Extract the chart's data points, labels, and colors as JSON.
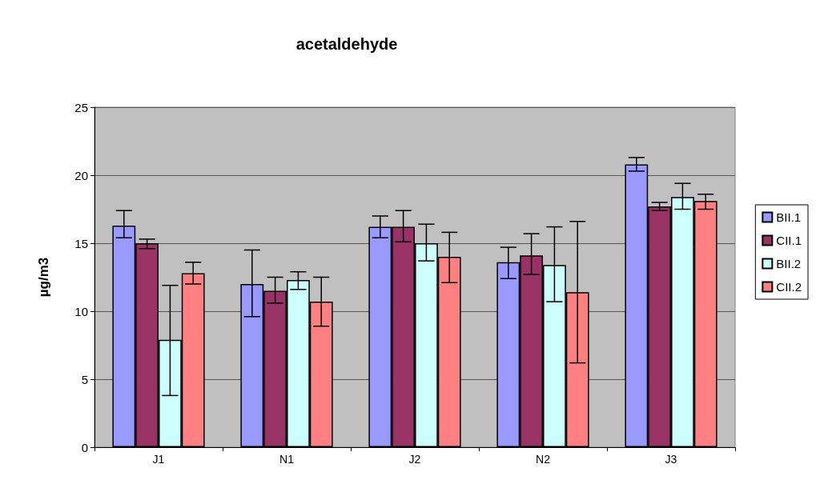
{
  "chart_data": {
    "type": "bar",
    "title": "acetaldehyde",
    "ylabel": "µg/m3",
    "categories": [
      "J1",
      "N1",
      "J2",
      "N2",
      "J3"
    ],
    "series": [
      {
        "name": "BII.1",
        "color": "#9999ff",
        "values": [
          16.3,
          12.0,
          16.2,
          13.6,
          20.8
        ],
        "errors": [
          [
            15.4,
            17.4
          ],
          [
            9.6,
            14.5
          ],
          [
            15.4,
            17.0
          ],
          [
            12.4,
            14.7
          ],
          [
            20.3,
            21.3
          ]
        ]
      },
      {
        "name": "CII.1",
        "color": "#993366",
        "values": [
          15.0,
          11.5,
          16.2,
          14.1,
          17.7
        ],
        "errors": [
          [
            14.6,
            15.3
          ],
          [
            10.6,
            12.5
          ],
          [
            15.1,
            17.4
          ],
          [
            12.7,
            15.7
          ],
          [
            17.4,
            18.0
          ]
        ]
      },
      {
        "name": "BII.2",
        "color": "#ccffff",
        "values": [
          7.9,
          12.3,
          15.0,
          13.4,
          18.4
        ],
        "errors": [
          [
            3.8,
            11.9
          ],
          [
            11.6,
            12.9
          ],
          [
            13.7,
            16.4
          ],
          [
            10.7,
            16.2
          ],
          [
            17.5,
            19.4
          ]
        ]
      },
      {
        "name": "CII.2",
        "color": "#ff8080",
        "values": [
          12.8,
          10.7,
          14.0,
          11.4,
          18.1
        ],
        "errors": [
          [
            12.0,
            13.6
          ],
          [
            8.9,
            12.5
          ],
          [
            12.1,
            15.8
          ],
          [
            6.2,
            16.6
          ],
          [
            17.5,
            18.6
          ]
        ]
      }
    ],
    "ylim": [
      0,
      25
    ],
    "yticks": [
      0,
      5,
      10,
      15,
      20,
      25
    ],
    "grid": "y",
    "legend": "right"
  }
}
